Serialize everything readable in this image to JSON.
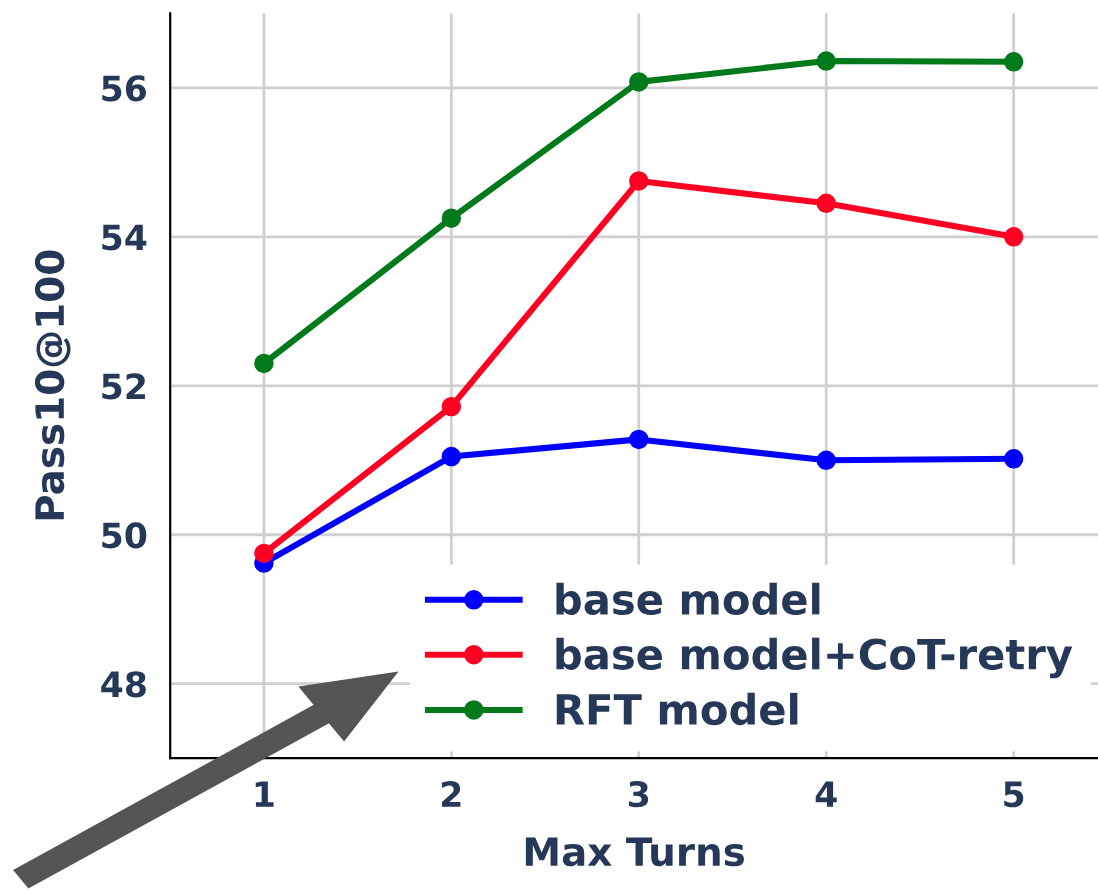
{
  "chart_data": {
    "type": "line",
    "xlabel": "Max Turns",
    "ylabel": "Pass10@100",
    "x": [
      1,
      2,
      3,
      4,
      5
    ],
    "series": [
      {
        "name": "base model",
        "color": "#0000ff",
        "values": [
          49.62,
          51.05,
          51.28,
          51.0,
          51.02
        ]
      },
      {
        "name": "base model+CoT-retry",
        "color": "#ff0022",
        "values": [
          49.75,
          51.72,
          54.75,
          54.45,
          54.0
        ]
      },
      {
        "name": "RFT model",
        "color": "#007a1a",
        "values": [
          52.3,
          54.25,
          56.08,
          56.36,
          56.35
        ]
      }
    ],
    "xlim": [
      0.5,
      5.45
    ],
    "ylim": [
      47,
      57
    ],
    "xticks": [
      1,
      2,
      3,
      4,
      5
    ],
    "yticks": [
      48,
      50,
      52,
      54,
      56
    ],
    "grid": true,
    "legend": "bottom right",
    "marker": "circle",
    "line_style": "solid"
  }
}
